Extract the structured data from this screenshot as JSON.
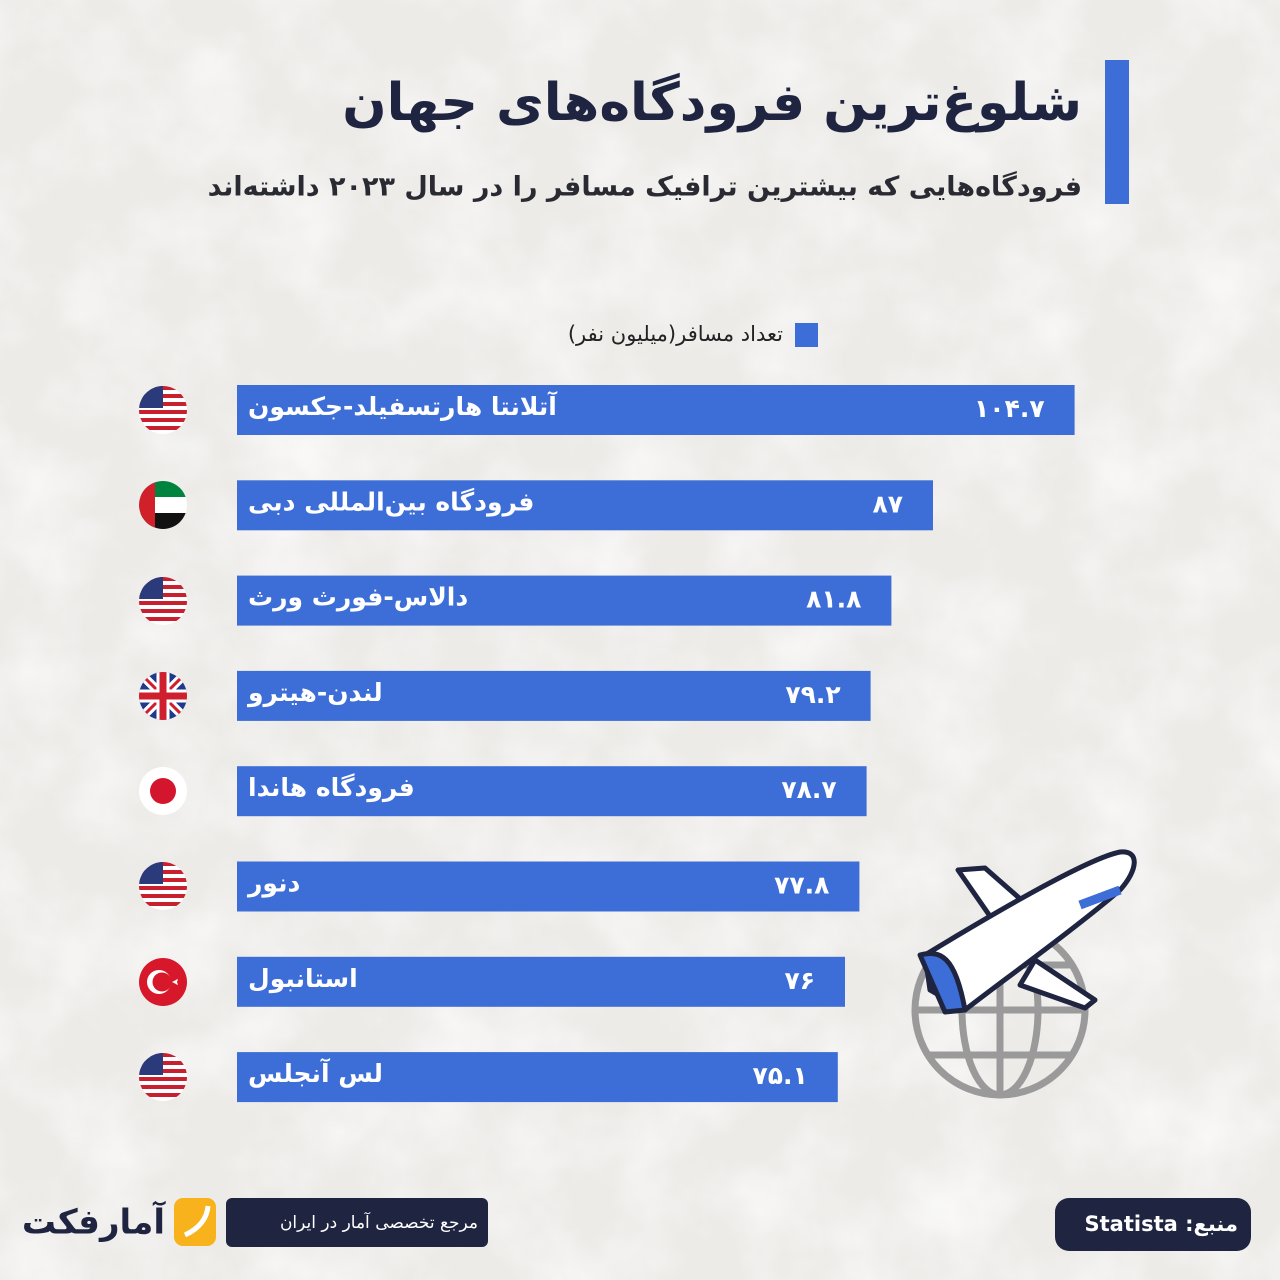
{
  "chart_data": {
    "type": "bar",
    "orientation": "horizontal",
    "title": "شلوغ‌ترین فرودگاه‌های جهان",
    "subtitle": "فرودگاه‌هایی که بیشترین ترافیک مسافر را در سال ۲۰۲۳ داشته‌اند",
    "legend": "تعداد مسافر(میلیون نفر)",
    "color": "#3d6dd6",
    "categories": [
      "آتلانتا هارتسفیلد-جکسون",
      "فرودگاه بین‌المللی دبی",
      "دالاس-فورث ورث",
      "لندن-هیترو",
      "فرودگاه هاندا",
      "دنور",
      "استانبول",
      "لس آنجلس"
    ],
    "values": [
      104.7,
      87,
      81.8,
      79.2,
      78.7,
      77.8,
      76,
      75.1
    ],
    "value_labels": [
      "۱۰۴.۷",
      "۸۷",
      "۸۱.۸",
      "۷۹.۲",
      "۷۸.۷",
      "۷۷.۸",
      "۷۶",
      "۷۵.۱"
    ],
    "source": "منبع: Statista",
    "tagline": "مرجع تخصصی آمار در ایران",
    "brand": "آمارفکت"
  }
}
